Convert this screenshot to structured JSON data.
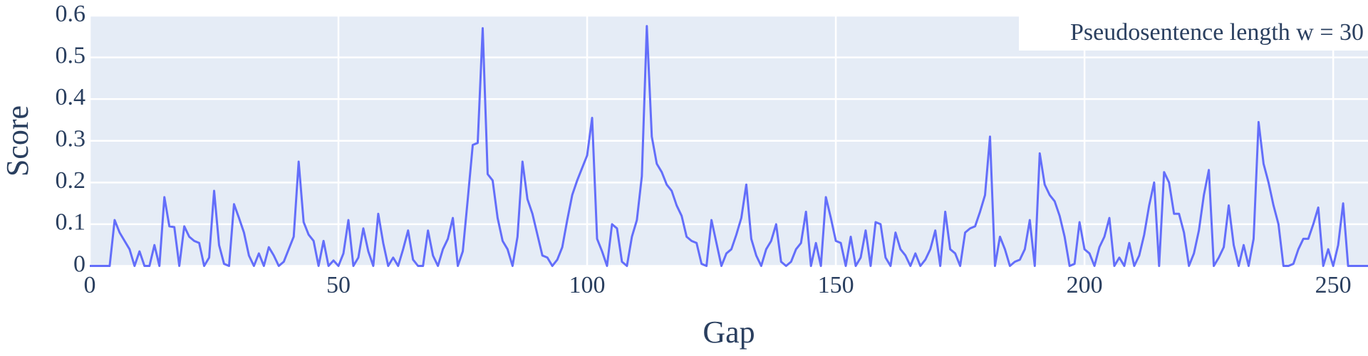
{
  "chart_data": {
    "type": "line",
    "x_label": "Gap",
    "y_label": "Score",
    "annotation": "Pseudosentence length w = 30",
    "color": "#636efa",
    "grid": true,
    "xlim": [
      0,
      257
    ],
    "ylim": [
      0,
      0.6
    ],
    "xticks": [
      0,
      50,
      100,
      150,
      200,
      250
    ],
    "yticks": [
      0,
      0.1,
      0.2,
      0.3,
      0.4,
      0.5,
      0.6
    ],
    "x": [
      0,
      1,
      2,
      3,
      4,
      5,
      6,
      7,
      8,
      9,
      10,
      11,
      12,
      13,
      14,
      15,
      16,
      17,
      18,
      19,
      20,
      21,
      22,
      23,
      24,
      25,
      26,
      27,
      28,
      29,
      30,
      31,
      32,
      33,
      34,
      35,
      36,
      37,
      38,
      39,
      40,
      41,
      42,
      43,
      44,
      45,
      46,
      47,
      48,
      49,
      50,
      51,
      52,
      53,
      54,
      55,
      56,
      57,
      58,
      59,
      60,
      61,
      62,
      63,
      64,
      65,
      66,
      67,
      68,
      69,
      70,
      71,
      72,
      73,
      74,
      75,
      76,
      77,
      78,
      79,
      80,
      81,
      82,
      83,
      84,
      85,
      86,
      87,
      88,
      89,
      90,
      91,
      92,
      93,
      94,
      95,
      96,
      97,
      98,
      99,
      100,
      101,
      102,
      103,
      104,
      105,
      106,
      107,
      108,
      109,
      110,
      111,
      112,
      113,
      114,
      115,
      116,
      117,
      118,
      119,
      120,
      121,
      122,
      123,
      124,
      125,
      126,
      127,
      128,
      129,
      130,
      131,
      132,
      133,
      134,
      135,
      136,
      137,
      138,
      139,
      140,
      141,
      142,
      143,
      144,
      145,
      146,
      147,
      148,
      149,
      150,
      151,
      152,
      153,
      154,
      155,
      156,
      157,
      158,
      159,
      160,
      161,
      162,
      163,
      164,
      165,
      166,
      167,
      168,
      169,
      170,
      171,
      172,
      173,
      174,
      175,
      176,
      177,
      178,
      179,
      180,
      181,
      182,
      183,
      184,
      185,
      186,
      187,
      188,
      189,
      190,
      191,
      192,
      193,
      194,
      195,
      196,
      197,
      198,
      199,
      200,
      201,
      202,
      203,
      204,
      205,
      206,
      207,
      208,
      209,
      210,
      211,
      212,
      213,
      214,
      215,
      216,
      217,
      218,
      219,
      220,
      221,
      222,
      223,
      224,
      225,
      226,
      227,
      228,
      229,
      230,
      231,
      232,
      233,
      234,
      235,
      236,
      237,
      238,
      239,
      240,
      241,
      242,
      243,
      244,
      245,
      246,
      247,
      248,
      249,
      250,
      251,
      252,
      253,
      254,
      255,
      256,
      257
    ],
    "values": [
      0,
      0,
      0,
      0,
      0,
      0.11,
      0.08,
      0.06,
      0.04,
      0,
      0.035,
      0,
      0,
      0.05,
      0,
      0.165,
      0.095,
      0.093,
      0,
      0.095,
      0.07,
      0.06,
      0.055,
      0,
      0.02,
      0.18,
      0.05,
      0.005,
      0,
      0.148,
      0.115,
      0.08,
      0.025,
      0,
      0.03,
      0,
      0.045,
      0.025,
      0,
      0.01,
      0.04,
      0.07,
      0.25,
      0.105,
      0.075,
      0.06,
      0,
      0.06,
      0,
      0.013,
      0,
      0.03,
      0.11,
      0,
      0.02,
      0.09,
      0.035,
      0,
      0.125,
      0.055,
      0,
      0.02,
      0,
      0.04,
      0.085,
      0.015,
      0,
      0,
      0.085,
      0.025,
      0,
      0.04,
      0.065,
      0.115,
      0,
      0.035,
      0.16,
      0.29,
      0.295,
      0.57,
      0.22,
      0.205,
      0.115,
      0.06,
      0.04,
      0,
      0.07,
      0.25,
      0.16,
      0.125,
      0.075,
      0.025,
      0.02,
      0,
      0.015,
      0.045,
      0.11,
      0.17,
      0.205,
      0.235,
      0.265,
      0.355,
      0.065,
      0.035,
      0,
      0.1,
      0.09,
      0.01,
      0,
      0.07,
      0.11,
      0.215,
      0.575,
      0.31,
      0.245,
      0.225,
      0.195,
      0.18,
      0.145,
      0.12,
      0.07,
      0.06,
      0.055,
      0.005,
      0,
      0.11,
      0.055,
      0,
      0.03,
      0.04,
      0.075,
      0.115,
      0.195,
      0.065,
      0.025,
      0,
      0.04,
      0.06,
      0.1,
      0.01,
      0,
      0.01,
      0.04,
      0.055,
      0.13,
      0,
      0.055,
      0,
      0.165,
      0.115,
      0.06,
      0.055,
      0,
      0.07,
      0,
      0.02,
      0.085,
      0,
      0.105,
      0.1,
      0.02,
      0,
      0.08,
      0.04,
      0.025,
      0,
      0.03,
      0,
      0.015,
      0.04,
      0.085,
      0,
      0.13,
      0.04,
      0.03,
      0,
      0.08,
      0.09,
      0.095,
      0.13,
      0.17,
      0.31,
      0,
      0.07,
      0.04,
      0,
      0.01,
      0.015,
      0.04,
      0.11,
      0,
      0.27,
      0.195,
      0.17,
      0.155,
      0.12,
      0.07,
      0,
      0.005,
      0.105,
      0.04,
      0.03,
      0,
      0.045,
      0.07,
      0.115,
      0,
      0.02,
      0,
      0.055,
      0,
      0.025,
      0.075,
      0.145,
      0.2,
      0,
      0.225,
      0.2,
      0.125,
      0.125,
      0.08,
      0,
      0.03,
      0.085,
      0.17,
      0.23,
      0,
      0.02,
      0.045,
      0.145,
      0.05,
      0,
      0.05,
      0,
      0.065,
      0.345,
      0.245,
      0.2,
      0.145,
      0.1,
      0,
      0,
      0.005,
      0.04,
      0.065,
      0.065,
      0.1,
      0.14,
      0,
      0.04,
      0,
      0.05,
      0.15,
      0,
      0,
      0,
      0,
      0
    ]
  }
}
